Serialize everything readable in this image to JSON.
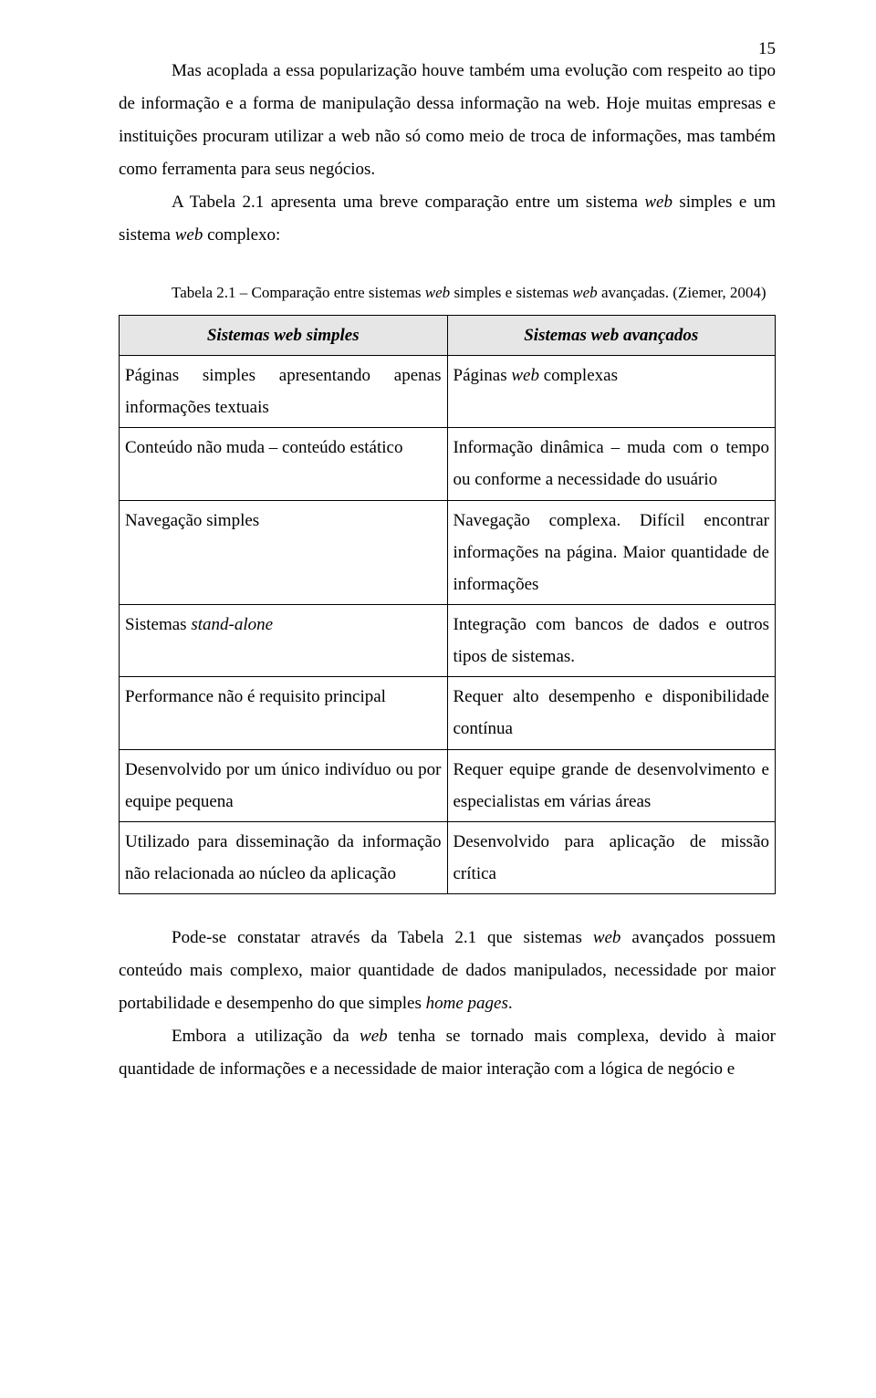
{
  "page_number": "15",
  "paragraphs": {
    "p1": "Mas acoplada a essa popularização houve também uma evolução com respeito ao tipo de informação e a forma de manipulação dessa informação na web. Hoje muitas empresas e instituições procuram utilizar a web não só como meio de troca de informações, mas também como ferramenta para seus negócios.",
    "p2_a": "A Tabela 2.1 apresenta uma breve comparação entre um sistema ",
    "p2_b": "web",
    "p2_c": " simples e um sistema ",
    "p2_d": "web",
    "p2_e": " complexo:",
    "caption_a": "Tabela 2.1 – Comparação entre sistemas ",
    "caption_b": "web",
    "caption_c": " simples e sistemas ",
    "caption_d": "web",
    "caption_e": " avançadas. (Ziemer, 2004)",
    "p3_a": "Pode-se constatar através da Tabela 2.1 que sistemas ",
    "p3_b": "web",
    "p3_c": " avançados possuem conteúdo mais complexo, maior quantidade de dados manipulados, necessidade por maior portabilidade e desempenho do que simples ",
    "p3_d": "home pages",
    "p3_e": ".",
    "p4_a": "Embora a utilização da ",
    "p4_b": "web",
    "p4_c": " tenha se tornado mais complexa, devido à maior quantidade de informações e a necessidade de maior interação com a lógica de negócio e"
  },
  "table": {
    "header_left_a": "Sistemas ",
    "header_left_b": "web",
    "header_left_c": " simples",
    "header_right_a": "Sistemas ",
    "header_right_b": "web",
    "header_right_c": " avançados",
    "rows": [
      {
        "l_a": "Páginas simples apresentando apenas informações textuais",
        "r_a": "Páginas ",
        "r_b": "web",
        "r_c": " complexas"
      },
      {
        "l_a": "Conteúdo não muda – conteúdo estático",
        "r_a": "Informação dinâmica – muda com o tempo ou conforme a necessidade do usuário"
      },
      {
        "l_a": "Navegação simples",
        "r_a": "Navegação complexa. Difícil encontrar informações na página. Maior quantidade de informações"
      },
      {
        "l_a": "Sistemas ",
        "l_b": "stand-alone",
        "r_a": "Integração com bancos de dados e outros tipos de sistemas."
      },
      {
        "l_a": "Performance não é requisito principal",
        "r_a": "Requer alto desempenho e disponibilidade contínua"
      },
      {
        "l_a": "Desenvolvido por um único indivíduo ou por equipe pequena",
        "r_a": "Requer equipe grande de desenvolvimento e especialistas em várias áreas"
      },
      {
        "l_a": "Utilizado para disseminação da informação não relacionada ao núcleo da aplicação",
        "r_a": "Desenvolvido para aplicação de missão crítica"
      }
    ]
  },
  "colors": {
    "page_bg": "#ffffff",
    "text": "#000000",
    "table_header_bg": "#e6e6e6",
    "table_border": "#000000"
  },
  "typography": {
    "body_fontsize_pt": 14,
    "caption_fontsize_pt": 13,
    "font_family": "Times New Roman"
  }
}
